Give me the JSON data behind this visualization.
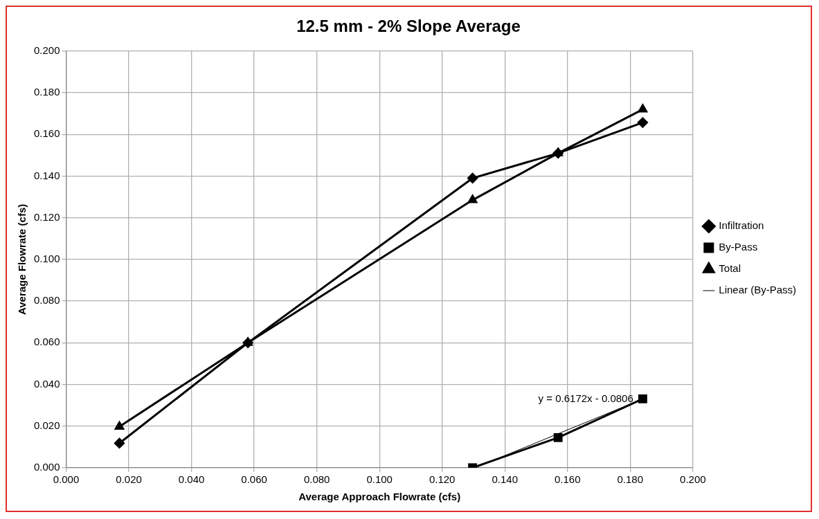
{
  "chart_data": {
    "type": "line",
    "title": "12.5 mm - 2% Slope Average",
    "xlabel": "Average Approach Flowrate (cfs)",
    "ylabel": "Average Flowrate (cfs)",
    "xlim": [
      0,
      0.2
    ],
    "xticks": [
      {
        "value": 0,
        "label": "0.000"
      },
      {
        "value": 0.02,
        "label": "0.020"
      },
      {
        "value": 0.04,
        "label": "0.040"
      },
      {
        "value": 0.06,
        "label": "0.060"
      },
      {
        "value": 0.08,
        "label": "0.080"
      },
      {
        "value": 0.1,
        "label": "0.100"
      },
      {
        "value": 0.12,
        "label": "0.120"
      },
      {
        "value": 0.14,
        "label": "0.140"
      },
      {
        "value": 0.16,
        "label": "0.160"
      },
      {
        "value": 0.18,
        "label": "0.180"
      },
      {
        "value": 0.2,
        "label": "0.200"
      }
    ],
    "ylim": [
      0,
      0.2
    ],
    "yticks": [
      {
        "value": 0,
        "label": "0.000"
      },
      {
        "value": 0.02,
        "label": "0.020"
      },
      {
        "value": 0.04,
        "label": "0.040"
      },
      {
        "value": 0.06,
        "label": "0.060"
      },
      {
        "value": 0.08,
        "label": "0.080"
      },
      {
        "value": 0.1,
        "label": "0.100"
      },
      {
        "value": 0.12,
        "label": "0.120"
      },
      {
        "value": 0.14,
        "label": "0.140"
      },
      {
        "value": 0.16,
        "label": "0.160"
      },
      {
        "value": 0.18,
        "label": "0.180"
      },
      {
        "value": 0.2,
        "label": "0.200"
      }
    ],
    "grid": true,
    "legend": "right",
    "line_style": "solid",
    "series": [
      {
        "name": "Infiltration",
        "color": "#000000",
        "marker": "diamond",
        "x": [
          0.017,
          0.058,
          0.1297,
          0.157,
          0.184
        ],
        "values": [
          0.0118,
          0.06,
          0.139,
          0.151,
          0.1657
        ]
      },
      {
        "name": "By-Pass",
        "color": "#000000",
        "marker": "square",
        "x": [
          0.1297,
          0.157,
          0.184
        ],
        "values": [
          0.0,
          0.0145,
          0.0331
        ]
      },
      {
        "name": "Total",
        "color": "#000000",
        "marker": "triangle",
        "x": [
          0.017,
          0.058,
          0.1297,
          0.157,
          0.184
        ],
        "values": [
          0.0198,
          0.06,
          0.1285,
          0.151,
          0.172
        ]
      },
      {
        "name": "Linear (By-Pass)",
        "color": "#000000",
        "marker": "none",
        "x": [
          0.131,
          0.184
        ],
        "values": [
          0.0003,
          0.033
        ]
      }
    ],
    "annotations": [
      {
        "text": "y = 0.6172x - 0.0806",
        "x": 0.181,
        "y": 0.033
      }
    ]
  }
}
